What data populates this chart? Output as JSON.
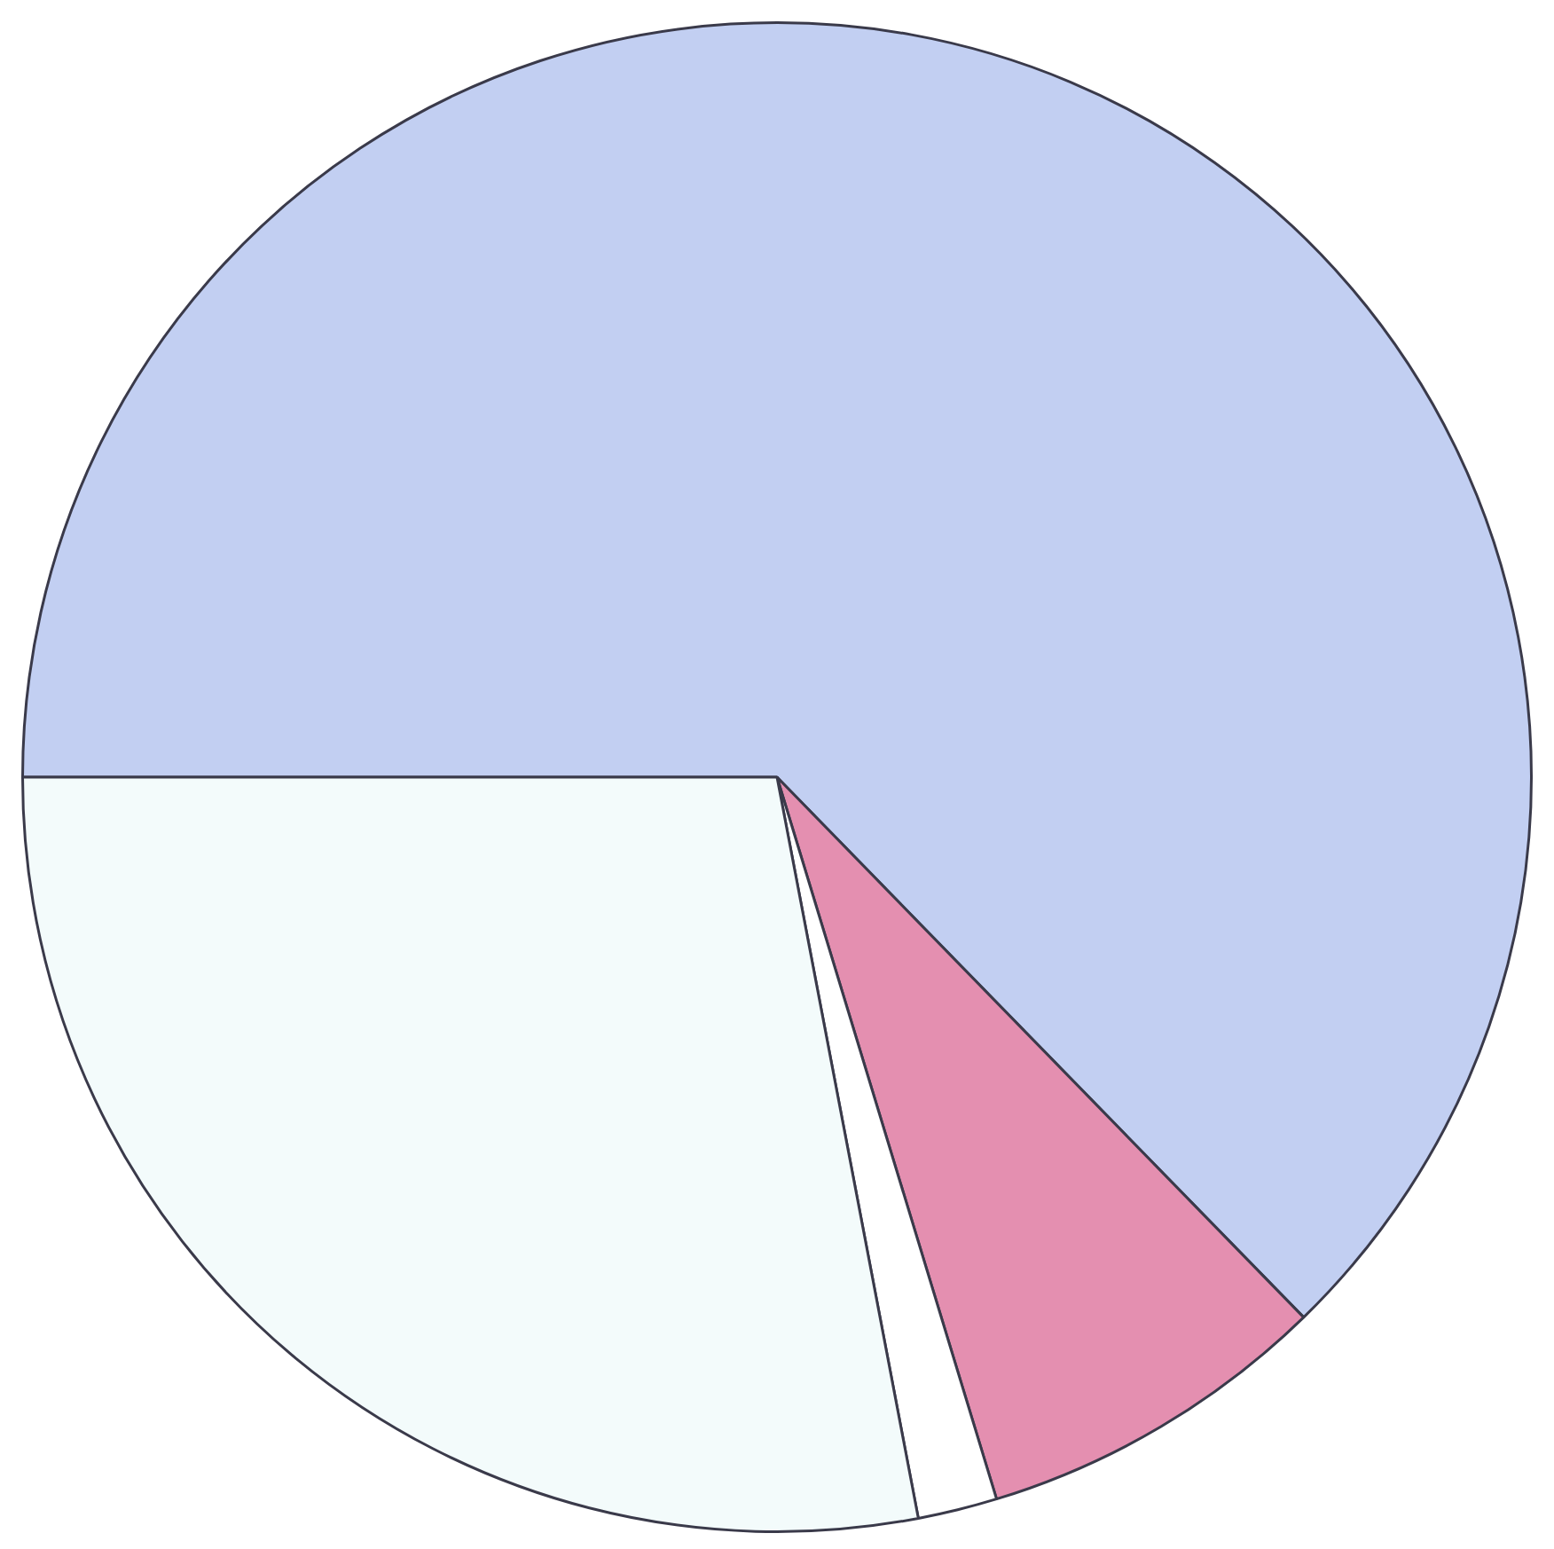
{
  "chart_data": {
    "type": "pie",
    "categories": [
      null,
      null,
      null,
      null
    ],
    "values": [
      62.7,
      7.6,
      1.7,
      28.0
    ],
    "colors": [
      "#c2cff2",
      "#e48fb0",
      "#ffffff",
      "#f3fbfb"
    ],
    "legend": false
  }
}
